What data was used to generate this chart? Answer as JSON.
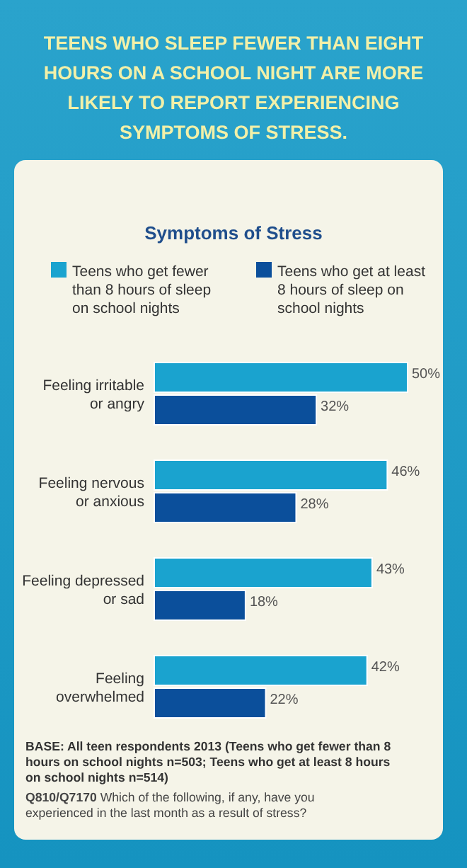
{
  "chart_data": {
    "type": "bar",
    "orientation": "horizontal",
    "title": "TEENS WHO SLEEP FEWER THAN EIGHT HOURS ON A SCHOOL NIGHT ARE MORE LIKELY TO REPORT EXPERIENCING SYMPTOMS OF STRESS.",
    "subtitle": "Symptoms of Stress",
    "categories": [
      "Feeling irritable or angry",
      "Feeling nervous or anxious",
      "Feeling depressed or sad",
      "Feeling overwhelmed"
    ],
    "series": [
      {
        "name": "Teens who get fewer than 8 hours of sleep on school nights",
        "color": "#1aa3cf",
        "values": [
          50,
          46,
          43,
          42
        ],
        "value_labels": [
          "50%",
          "46%",
          "43%",
          "42%"
        ]
      },
      {
        "name": "Teens who get at least 8 hours of sleep on school nights",
        "color": "#0b4f9b",
        "values": [
          32,
          28,
          18,
          22
        ],
        "value_labels": [
          "32%",
          "28%",
          "18%",
          "22%"
        ]
      }
    ],
    "legend": "top",
    "annotations": [
      "BASE: All teen respondents 2013 (Teens who get fewer than 8 hours on school nights n=503; Teens who get at least 8 hours on school nights n=514)",
      "Q810/Q7170",
      "Which of the following, if any, have you experienced in the last month as a result of stress?"
    ]
  }
}
